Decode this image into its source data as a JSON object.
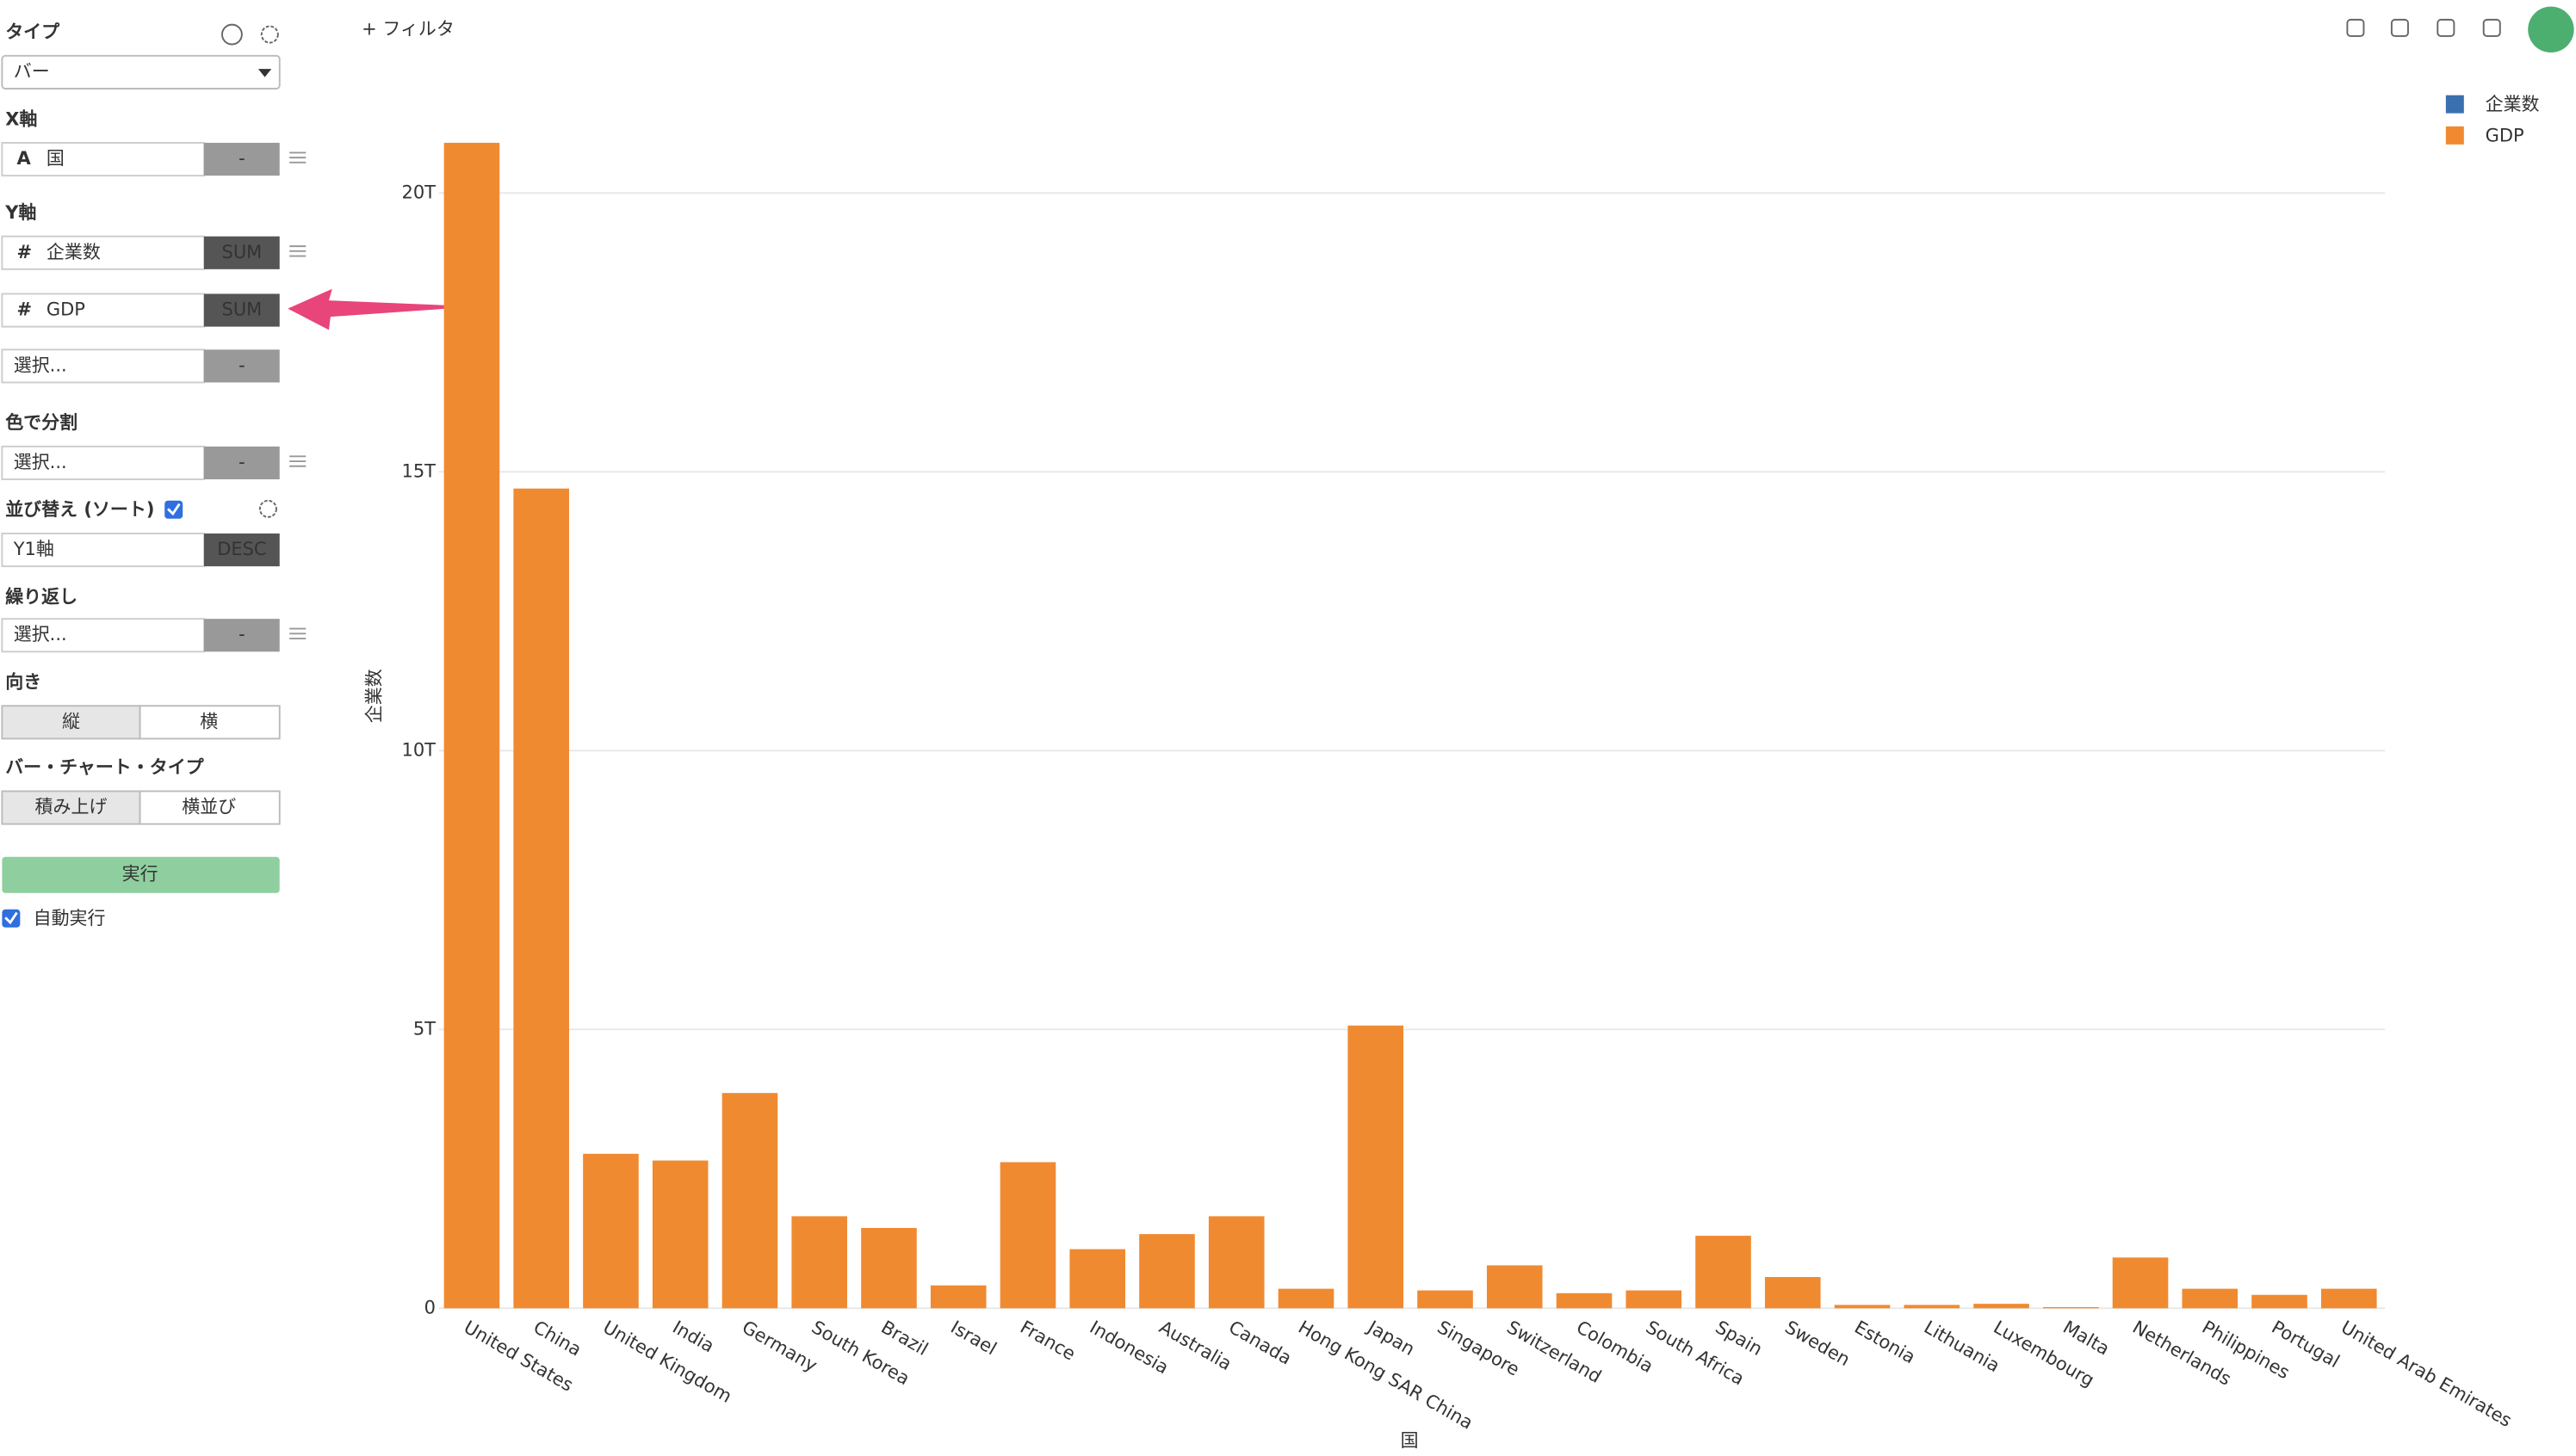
{
  "toolbar": {
    "filter": "+ フィルタ"
  },
  "sidebar": {
    "type": {
      "label": "タイプ",
      "value": "バー"
    },
    "x_axis": {
      "label": "X軸",
      "icon": "A",
      "field": "国",
      "agg": "-"
    },
    "y_axis": {
      "label": "Y軸",
      "fields": [
        {
          "icon": "#",
          "field": "企業数",
          "agg": "SUM"
        },
        {
          "icon": "#",
          "field": "GDP",
          "agg": "SUM"
        },
        {
          "field": "選択...",
          "agg": "-"
        }
      ]
    },
    "color_split": {
      "label": "色で分割",
      "field": "選択...",
      "agg": "-"
    },
    "sort": {
      "label": "並び替え (ソート)",
      "field": "Y1軸",
      "order": "DESC"
    },
    "repeat": {
      "label": "繰り返し",
      "field": "選択...",
      "agg": "-"
    },
    "orientation": {
      "label": "向き",
      "options": [
        "縦",
        "横"
      ]
    },
    "bar_type": {
      "label": "バー・チャート・タイプ",
      "options": [
        "積み上げ",
        "横並び"
      ]
    },
    "run": "実行",
    "auto_run": "自動実行"
  },
  "chart_data": {
    "type": "bar",
    "stacked": true,
    "x_label": "国",
    "y_label": "企業数",
    "categories": [
      "United States",
      "China",
      "United Kingdom",
      "India",
      "Germany",
      "South Korea",
      "Brazil",
      "Israel",
      "France",
      "Indonesia",
      "Australia",
      "Canada",
      "Hong Kong SAR China",
      "Japan",
      "Singapore",
      "Switzerland",
      "Colombia",
      "South Africa",
      "Spain",
      "Sweden",
      "Estonia",
      "Lithuania",
      "Luxembourg",
      "Malta",
      "Netherlands",
      "Philippines",
      "Portugal",
      "United Arab Emirates"
    ],
    "series": [
      {
        "name": "企業数",
        "color": "#3a6fb0",
        "values": [
          null,
          null,
          null,
          null,
          null,
          null,
          null,
          null,
          null,
          null,
          null,
          null,
          null,
          null,
          null,
          null,
          null,
          null,
          null,
          null,
          null,
          null,
          null,
          null,
          null,
          null,
          null,
          null
        ]
      },
      {
        "name": "GDP",
        "color": "#f08a30",
        "values": [
          20900000000000.0,
          14700000000000.0,
          2770000000000.0,
          2650000000000.0,
          3860000000000.0,
          1650000000000.0,
          1440000000000.0,
          410000000000.0,
          2620000000000.0,
          1060000000000.0,
          1330000000000.0,
          1650000000000.0,
          350000000000.0,
          5070000000000.0,
          320000000000.0,
          770000000000.0,
          270000000000.0,
          320000000000.0,
          1300000000000.0,
          560000000000.0,
          60000000000.0,
          60000000000.0,
          80000000000.0,
          20000000000.0,
          910000000000.0,
          350000000000.0,
          240000000000.0,
          350000000000.0
        ]
      }
    ],
    "ylim": [
      0,
      21400000000000.0
    ],
    "yticks": [
      0,
      {
        "value": 5000000000000.0,
        "label": "5T"
      },
      {
        "value": 10000000000000.0,
        "label": "10T"
      },
      {
        "value": 15000000000000.0,
        "label": "15T"
      },
      {
        "value": 20000000000000.0,
        "label": "20T"
      }
    ],
    "grid": true,
    "legend": "top-right"
  }
}
